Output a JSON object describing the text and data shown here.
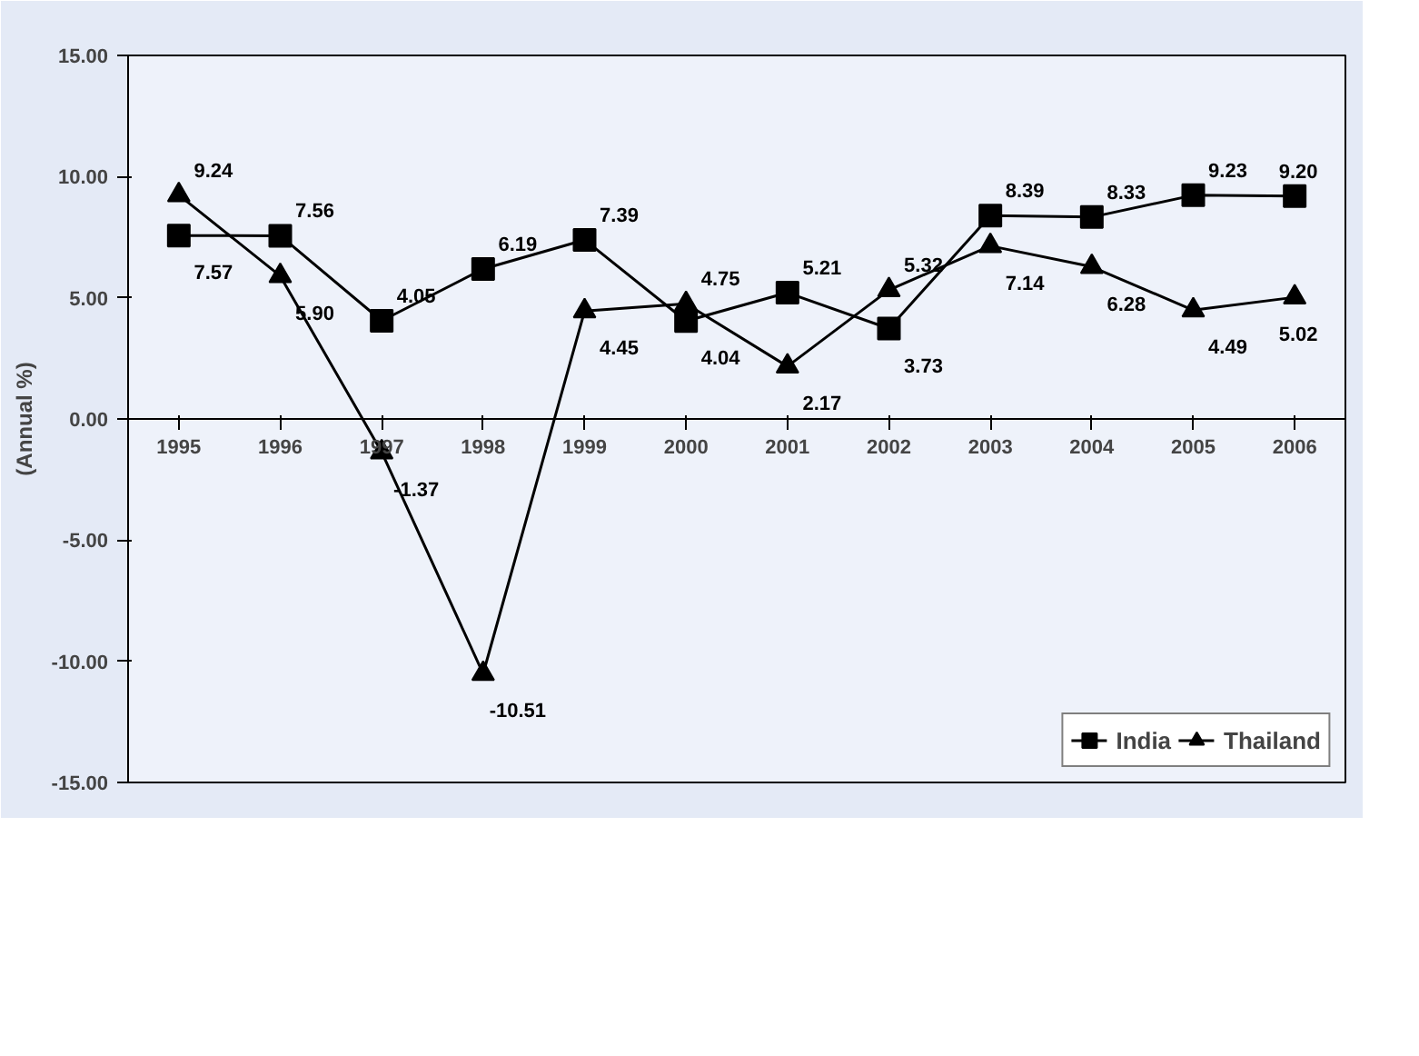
{
  "chart_data": {
    "type": "line",
    "ylabel": "(Annual %)",
    "categories": [
      "1995",
      "1996",
      "1997",
      "1998",
      "1999",
      "2000",
      "2001",
      "2002",
      "2003",
      "2004",
      "2005",
      "2006"
    ],
    "series": [
      {
        "name": "India",
        "color": "#000000",
        "marker": "square",
        "values": [
          7.57,
          7.56,
          4.05,
          6.19,
          7.39,
          4.04,
          5.21,
          3.73,
          8.39,
          8.33,
          9.23,
          9.2
        ],
        "value_labels": [
          "7.57",
          "7.56",
          "4.05",
          "6.19",
          "7.39",
          "4.04",
          "5.21",
          "3.73",
          "8.39",
          "8.33",
          "9.23",
          "9.20"
        ]
      },
      {
        "name": "Thailand",
        "color": "#000000",
        "marker": "triangle",
        "values": [
          9.24,
          5.9,
          -1.37,
          -10.51,
          4.45,
          4.75,
          2.17,
          5.32,
          7.14,
          6.28,
          4.49,
          5.02
        ],
        "value_labels": [
          "9.24",
          "5.90",
          "-1.37",
          "-10.51",
          "4.45",
          "4.75",
          "2.17",
          "5.32",
          "7.14",
          "6.28",
          "4.49",
          "5.02"
        ]
      }
    ],
    "ylim": [
      -15,
      15
    ],
    "yticks": [
      {
        "value": -15,
        "label": "-15.00"
      },
      {
        "value": -10,
        "label": "-10.00"
      },
      {
        "value": -5,
        "label": "-5.00"
      },
      {
        "value": 0,
        "label": "0.00"
      },
      {
        "value": 5,
        "label": "5.00"
      },
      {
        "value": 10,
        "label": "10.00"
      },
      {
        "value": 15,
        "label": "15.00"
      }
    ],
    "grid": false,
    "legend": "bottom right",
    "line_style": "solid"
  }
}
